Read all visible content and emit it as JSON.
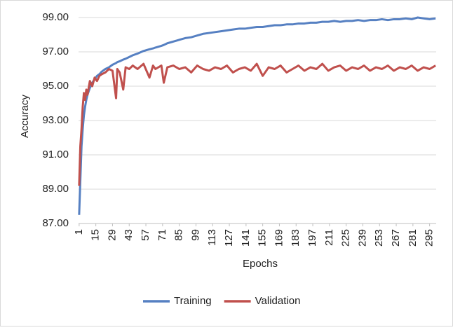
{
  "chart_data": {
    "type": "line",
    "y_label": "Accuracy",
    "x_label": "Epochs",
    "x": [
      1,
      2,
      3,
      4,
      5,
      6,
      7,
      8,
      10,
      12,
      14,
      16,
      18,
      20,
      23,
      26,
      29,
      32,
      33,
      35,
      38,
      40,
      43,
      46,
      50,
      55,
      60,
      63,
      65,
      70,
      72,
      75,
      80,
      85,
      90,
      95,
      100,
      105,
      110,
      115,
      120,
      125,
      130,
      135,
      140,
      145,
      150,
      155,
      160,
      165,
      170,
      175,
      180,
      185,
      190,
      195,
      200,
      205,
      210,
      215,
      220,
      225,
      230,
      235,
      240,
      245,
      250,
      255,
      260,
      265,
      270,
      275,
      280,
      285,
      290,
      295,
      300
    ],
    "series": [
      {
        "name": "Training",
        "color": "#5680c2",
        "values": [
          87.5,
          89.5,
          91.5,
          92.5,
          93.3,
          93.8,
          94.2,
          94.5,
          94.9,
          95.2,
          95.4,
          95.6,
          95.7,
          95.85,
          96.0,
          96.1,
          96.25,
          96.35,
          96.4,
          96.45,
          96.55,
          96.6,
          96.7,
          96.8,
          96.9,
          97.05,
          97.15,
          97.2,
          97.25,
          97.35,
          97.4,
          97.5,
          97.6,
          97.7,
          97.8,
          97.85,
          97.95,
          98.05,
          98.1,
          98.15,
          98.2,
          98.25,
          98.3,
          98.35,
          98.35,
          98.4,
          98.45,
          98.45,
          98.5,
          98.55,
          98.55,
          98.6,
          98.6,
          98.65,
          98.65,
          98.7,
          98.7,
          98.75,
          98.75,
          98.8,
          98.75,
          98.8,
          98.8,
          98.85,
          98.8,
          98.85,
          98.85,
          98.9,
          98.85,
          98.9,
          98.9,
          98.95,
          98.9,
          99.0,
          98.95,
          98.9,
          98.95
        ]
      },
      {
        "name": "Validation",
        "color": "#c0504d",
        "values": [
          89.2,
          91.5,
          92.5,
          93.8,
          94.6,
          94.2,
          94.8,
          94.5,
          95.3,
          95.0,
          95.5,
          95.3,
          95.6,
          95.7,
          95.8,
          96.0,
          95.9,
          94.3,
          96.0,
          95.8,
          94.8,
          96.1,
          96.0,
          96.2,
          96.0,
          96.3,
          95.5,
          96.2,
          96.0,
          96.2,
          95.2,
          96.1,
          96.2,
          96.0,
          96.1,
          95.8,
          96.2,
          96.0,
          95.9,
          96.1,
          96.0,
          96.2,
          95.8,
          96.0,
          96.1,
          95.9,
          96.3,
          95.6,
          96.1,
          96.0,
          96.2,
          95.8,
          96.0,
          96.2,
          95.9,
          96.1,
          96.0,
          96.3,
          95.9,
          96.1,
          96.2,
          95.9,
          96.1,
          96.0,
          96.2,
          95.9,
          96.1,
          96.0,
          96.2,
          95.9,
          96.1,
          96.0,
          96.2,
          95.9,
          96.1,
          96.0,
          96.2
        ]
      }
    ],
    "xlim": [
      0.5,
      300.5
    ],
    "xticks": [
      1,
      15,
      29,
      43,
      57,
      71,
      85,
      99,
      113,
      127,
      141,
      155,
      169,
      183,
      197,
      211,
      225,
      239,
      253,
      267,
      281,
      295
    ],
    "ylim": [
      87,
      99.5
    ],
    "yticks": [
      {
        "value": 87,
        "label": "87.00"
      },
      {
        "value": 89,
        "label": "89.00"
      },
      {
        "value": 91,
        "label": "91.00"
      },
      {
        "value": 93,
        "label": "93.00"
      },
      {
        "value": 95,
        "label": "95.00"
      },
      {
        "value": 97,
        "label": "97.00"
      },
      {
        "value": 99,
        "label": "99.00"
      }
    ],
    "grid": true,
    "legend": "bottom"
  }
}
